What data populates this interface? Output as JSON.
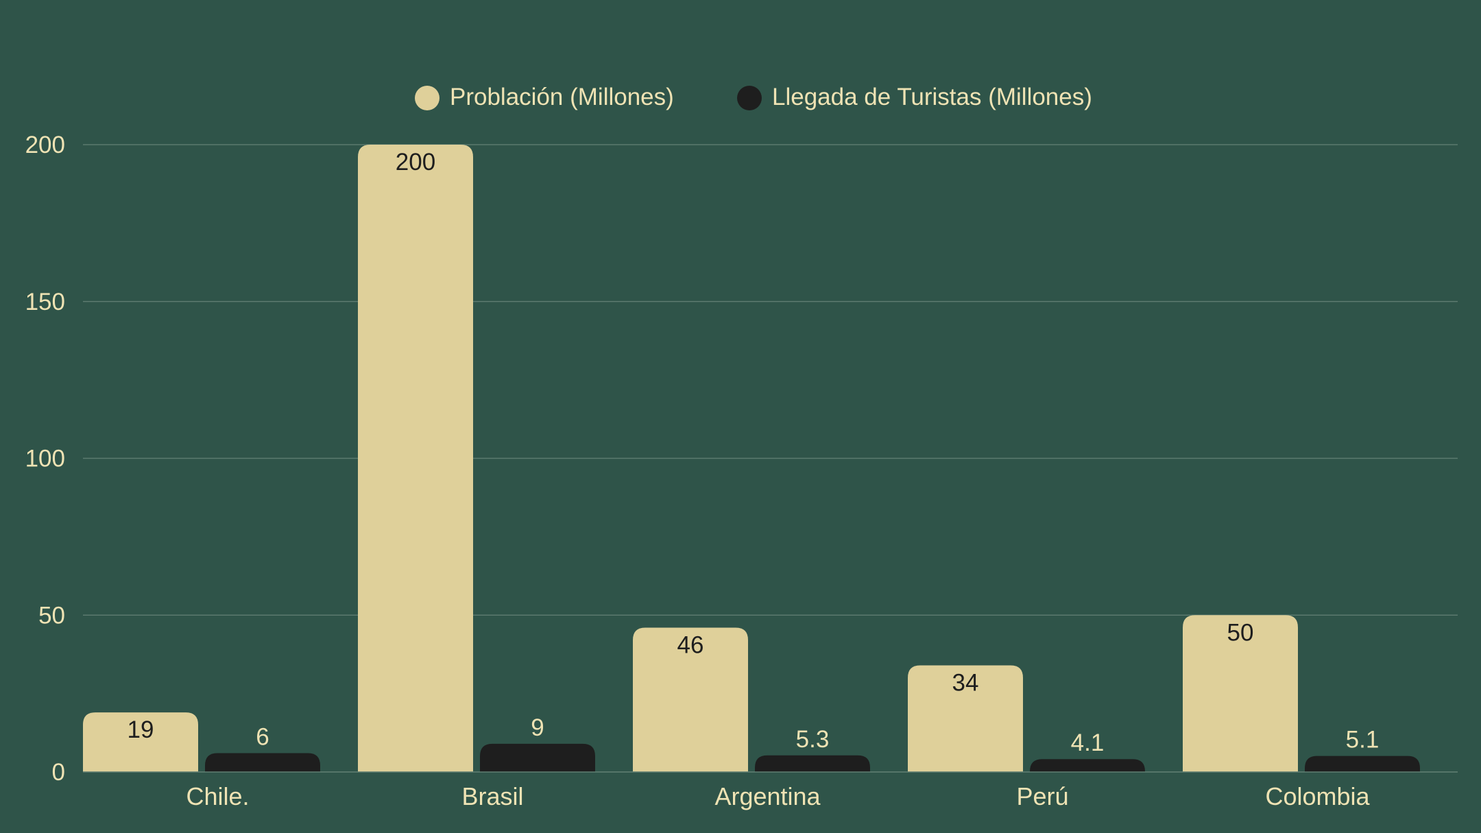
{
  "chart_data": {
    "type": "bar",
    "title": "",
    "xlabel": "",
    "ylabel": "",
    "categories": [
      "Chile.",
      "Brasil",
      "Argentina",
      "Perú",
      "Colombia"
    ],
    "series": [
      {
        "name": "Problación (Millones)",
        "values": [
          19,
          200,
          46,
          34,
          50
        ],
        "labels": [
          "19",
          "200",
          "46",
          "34",
          "50"
        ],
        "color": "#dfd09a"
      },
      {
        "name": "Llegada de Turistas (Millones)",
        "values": [
          6,
          9,
          5.3,
          4.1,
          5.1
        ],
        "labels": [
          "6",
          "9",
          "5.3",
          "4.1",
          "5.1"
        ],
        "color": "#1e1e1e"
      }
    ],
    "ylim": [
      0,
      200
    ],
    "yticks": [
      0,
      50,
      100,
      150,
      200
    ],
    "ytick_labels": [
      "0",
      "50",
      "100",
      "150",
      "200"
    ],
    "grid": true,
    "legend_position": "top-center"
  },
  "colors": {
    "background": "#2f5449",
    "gridline": "#5b7a6e",
    "text": "#efe3b4",
    "label_on_light": "#1e1e1e"
  }
}
